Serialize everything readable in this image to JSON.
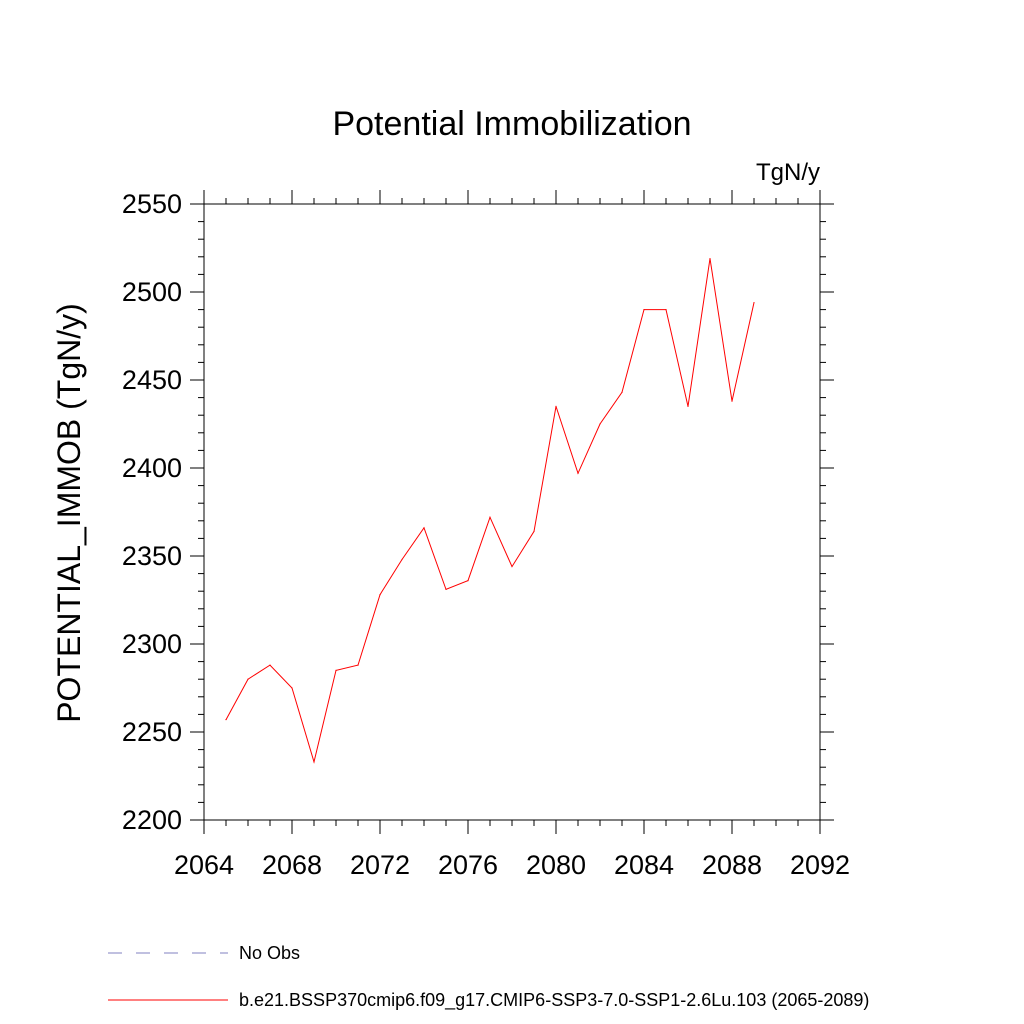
{
  "chart_data": {
    "type": "line",
    "title": "Potential Immobilization",
    "units_label": "TgN/y",
    "ylabel": "POTENTIAL_IMMOB  (TgN/y)",
    "xlabel": "",
    "xlim": [
      2064,
      2092
    ],
    "ylim": [
      2200,
      2550
    ],
    "x_ticks": [
      2064,
      2068,
      2072,
      2076,
      2080,
      2084,
      2088,
      2092
    ],
    "y_ticks": [
      2200,
      2250,
      2300,
      2350,
      2400,
      2450,
      2500,
      2550
    ],
    "grid": false,
    "series": [
      {
        "name": "b.e21.BSSP370cmip6.f09_g17.CMIP6-SSP3-7.0-SSP1-2.6Lu.103 (2065-2089)",
        "color": "#ff0000",
        "style": "solid",
        "x": [
          2065,
          2066,
          2067,
          2068,
          2069,
          2070,
          2071,
          2072,
          2073,
          2074,
          2075,
          2076,
          2077,
          2078,
          2079,
          2080,
          2081,
          2082,
          2083,
          2084,
          2085,
          2086,
          2087,
          2088,
          2089
        ],
        "y": [
          2257,
          2280,
          2288,
          2275,
          2233,
          2285,
          2288,
          2328,
          2348,
          2366,
          2331,
          2336,
          2372,
          2344,
          2364,
          2435,
          2397,
          2425,
          2443,
          2490,
          2490,
          2435,
          2519,
          2438,
          2494
        ]
      }
    ],
    "legend": [
      {
        "label": "No Obs",
        "color": "#8080c0",
        "style": "dashed"
      },
      {
        "label": "b.e21.BSSP370cmip6.f09_g17.CMIP6-SSP3-7.0-SSP1-2.6Lu.103 (2065-2089)",
        "color": "#ff0000",
        "style": "solid"
      }
    ],
    "legend_position": "bottom"
  }
}
